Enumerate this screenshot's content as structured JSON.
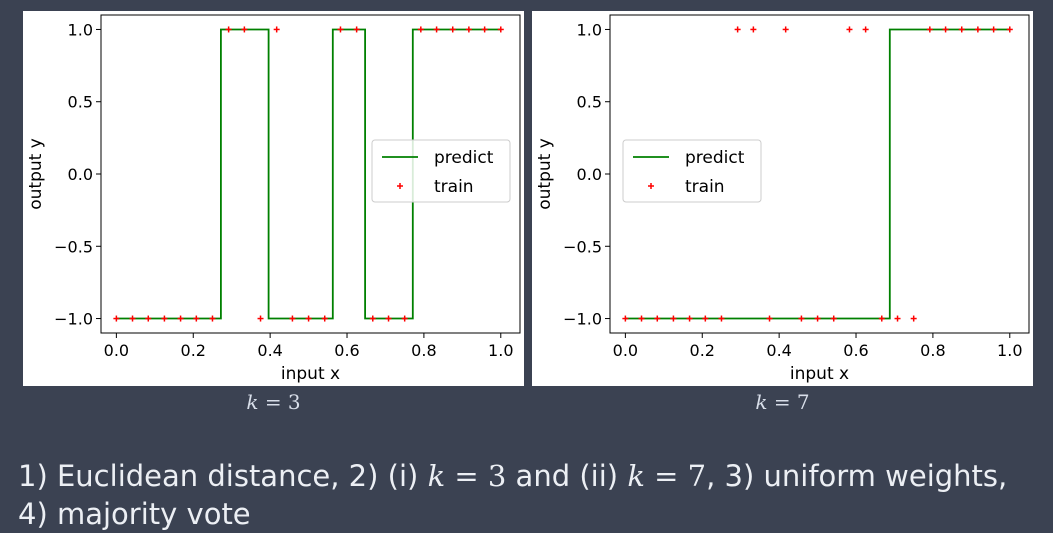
{
  "chart_data": [
    {
      "type": "line",
      "caption": "k = 3",
      "caption_var": "k",
      "caption_val": "= 3",
      "xlabel": "input x",
      "ylabel": "output y",
      "xlim": [
        -0.04,
        1.05
      ],
      "ylim": [
        -1.1,
        1.1
      ],
      "xticks": [
        0.0,
        0.2,
        0.4,
        0.6,
        0.8,
        1.0
      ],
      "xtick_labels": [
        "0.0",
        "0.2",
        "0.4",
        "0.6",
        "0.8",
        "1.0"
      ],
      "yticks": [
        1.0,
        0.5,
        0.0,
        -0.5,
        -1.0
      ],
      "ytick_labels": [
        "1.0",
        "0.5",
        "0.0",
        "−0.5",
        "−1.0"
      ],
      "legend_position": "right",
      "series": [
        {
          "name": "predict",
          "style": "step-line",
          "color": "#008000",
          "x": [
            0.0,
            0.272,
            0.272,
            0.396,
            0.396,
            0.563,
            0.563,
            0.647,
            0.647,
            0.771,
            0.771,
            1.0
          ],
          "y": [
            -1,
            -1,
            1,
            1,
            -1,
            -1,
            1,
            1,
            -1,
            -1,
            1,
            1
          ]
        },
        {
          "name": "train",
          "style": "plus-marker",
          "color": "#ff0000",
          "x": [
            0.0,
            0.042,
            0.083,
            0.125,
            0.167,
            0.208,
            0.25,
            0.292,
            0.333,
            0.375,
            0.417,
            0.458,
            0.5,
            0.542,
            0.583,
            0.625,
            0.667,
            0.708,
            0.75,
            0.792,
            0.833,
            0.875,
            0.917,
            0.958,
            1.0
          ],
          "y": [
            -1,
            -1,
            -1,
            -1,
            -1,
            -1,
            -1,
            1,
            1,
            -1,
            1,
            -1,
            -1,
            -1,
            1,
            1,
            -1,
            -1,
            -1,
            1,
            1,
            1,
            1,
            1,
            1
          ]
        }
      ]
    },
    {
      "type": "line",
      "caption": "k = 7",
      "caption_var": "k",
      "caption_val": "= 7",
      "xlabel": "input x",
      "ylabel": "output y",
      "xlim": [
        -0.04,
        1.05
      ],
      "ylim": [
        -1.1,
        1.1
      ],
      "xticks": [
        0.0,
        0.2,
        0.4,
        0.6,
        0.8,
        1.0
      ],
      "xtick_labels": [
        "0.0",
        "0.2",
        "0.4",
        "0.6",
        "0.8",
        "1.0"
      ],
      "yticks": [
        1.0,
        0.5,
        0.0,
        -0.5,
        -1.0
      ],
      "ytick_labels": [
        "1.0",
        "0.5",
        "0.0",
        "−0.5",
        "−1.0"
      ],
      "legend_position": "left",
      "series": [
        {
          "name": "predict",
          "style": "step-line",
          "color": "#008000",
          "x": [
            0.0,
            0.688,
            0.688,
            1.0
          ],
          "y": [
            -1,
            -1,
            1,
            1
          ]
        },
        {
          "name": "train",
          "style": "plus-marker",
          "color": "#ff0000",
          "x": [
            0.0,
            0.042,
            0.083,
            0.125,
            0.167,
            0.208,
            0.25,
            0.292,
            0.333,
            0.375,
            0.417,
            0.458,
            0.5,
            0.542,
            0.583,
            0.625,
            0.667,
            0.708,
            0.75,
            0.792,
            0.833,
            0.875,
            0.917,
            0.958,
            1.0
          ],
          "y": [
            -1,
            -1,
            -1,
            -1,
            -1,
            -1,
            -1,
            1,
            1,
            -1,
            1,
            -1,
            -1,
            -1,
            1,
            1,
            -1,
            -1,
            -1,
            1,
            1,
            1,
            1,
            1,
            1
          ]
        }
      ]
    }
  ],
  "footer": {
    "p1": "1) Euclidean distance, 2) (i) ",
    "k1": "k",
    "eq1": " = 3",
    "p2": " and (ii) ",
    "k2": "k",
    "eq2": " = 7",
    "p3": ", 3) uniform weights, 4) majority vote"
  },
  "colors": {
    "background": "#3b4252",
    "panel": "#ffffff",
    "predict_line": "#008000",
    "train_marker": "#ff0000",
    "caption_text": "#d8dee9",
    "footer_text": "#eceff4"
  }
}
